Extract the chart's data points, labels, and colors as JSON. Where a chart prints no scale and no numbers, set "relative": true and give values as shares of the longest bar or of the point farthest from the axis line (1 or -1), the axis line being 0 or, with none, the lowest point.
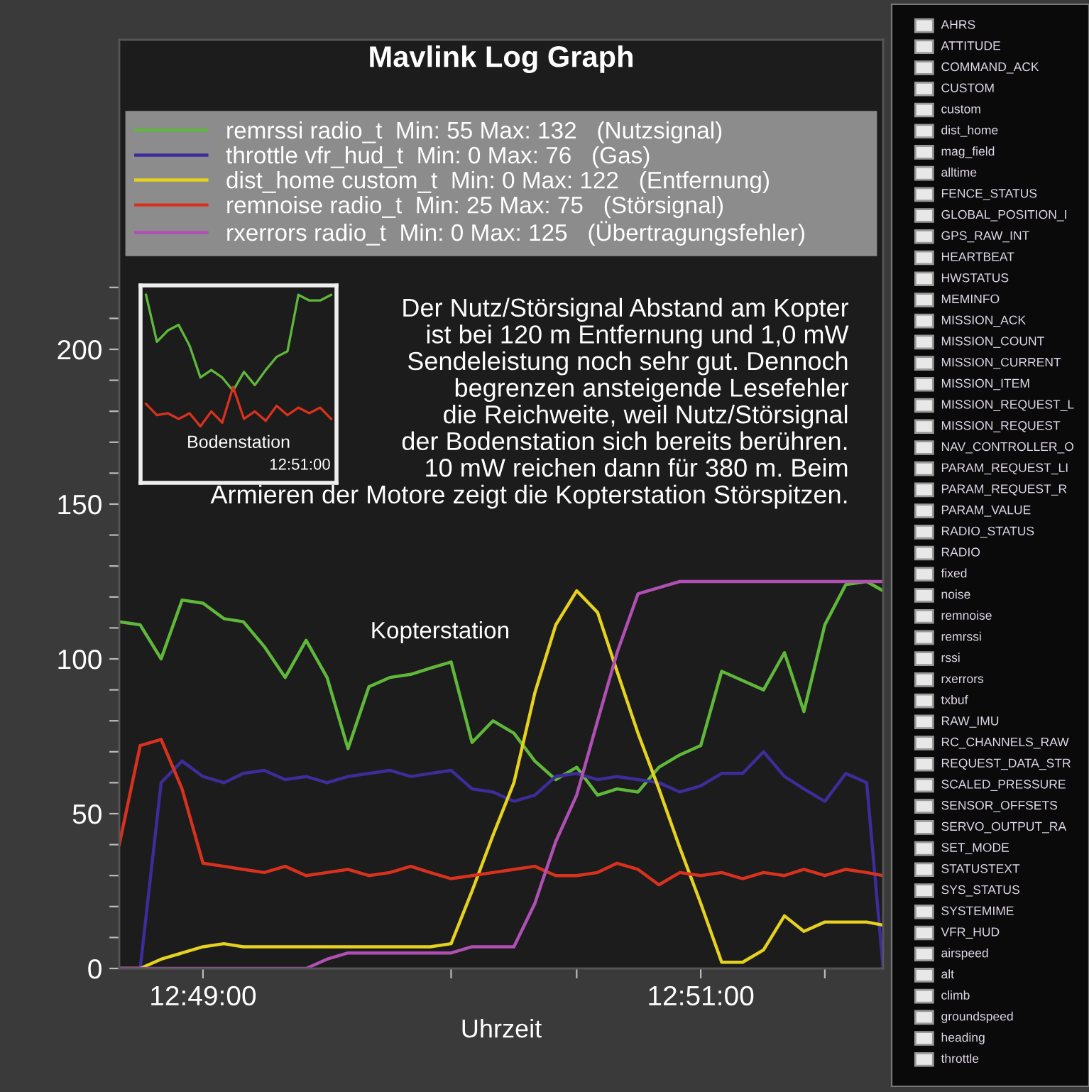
{
  "chart_data": [
    {
      "type": "line",
      "title": "Mavlink Log Graph",
      "xlabel": "Uhrzeit",
      "legend": "top",
      "line_style": "solid",
      "x": [
        12.8111,
        12.8125,
        12.8139,
        12.8153,
        12.8167,
        12.8181,
        12.8194,
        12.8208,
        12.8222,
        12.8236,
        12.825,
        12.8264,
        12.8278,
        12.8292,
        12.8306,
        12.8319,
        12.8333,
        12.8347,
        12.8361,
        12.8375,
        12.8389,
        12.8403,
        12.8417,
        12.8431,
        12.8444,
        12.8458,
        12.8472,
        12.8486,
        12.85,
        12.8514,
        12.8528,
        12.8542,
        12.8556,
        12.8569,
        12.8583,
        12.8597,
        12.8611,
        12.8622
      ],
      "xlim": [
        12.8111,
        12.8622
      ],
      "xticks": [
        {
          "value": 12.8167,
          "label": "12:49:00"
        },
        {
          "value": 12.8333,
          "label": null
        },
        {
          "value": 12.8417,
          "label": null
        },
        {
          "value": 12.85,
          "label": "12:51:00"
        },
        {
          "value": 12.8583,
          "label": null
        }
      ],
      "ylim": [
        0,
        300
      ],
      "yticks": [
        0,
        {
          "value": 10,
          "label": null
        },
        {
          "value": 20,
          "label": null
        },
        {
          "value": 30,
          "label": null
        },
        {
          "value": 40,
          "label": null
        },
        50,
        {
          "value": 60,
          "label": null
        },
        {
          "value": 70,
          "label": null
        },
        {
          "value": 80,
          "label": null
        },
        {
          "value": 90,
          "label": null
        },
        100,
        {
          "value": 110,
          "label": null
        },
        {
          "value": 120,
          "label": null
        },
        {
          "value": 130,
          "label": null
        },
        {
          "value": 140,
          "label": null
        },
        150,
        {
          "value": 160,
          "label": null
        },
        {
          "value": 170,
          "label": null
        },
        {
          "value": 180,
          "label": null
        },
        {
          "value": 190,
          "label": null
        },
        200,
        {
          "value": 210,
          "label": null
        },
        {
          "value": 220,
          "label": null
        }
      ],
      "series": [
        {
          "name": "remrssi radio_t  Min: 55 Max: 132   (Nutzsignal)",
          "color": "#5fb83a",
          "values": [
            112,
            111,
            100,
            119,
            118,
            113,
            112,
            104,
            94,
            106,
            94,
            71,
            91,
            94,
            95,
            97,
            99,
            73,
            80,
            76,
            67,
            61,
            65,
            56,
            58,
            57,
            65,
            69,
            72,
            96,
            93,
            90,
            102,
            83,
            111,
            124,
            125,
            122
          ]
        },
        {
          "name": "throttle vfr_hud_t  Min: 0 Max: 76   (Gas)",
          "color": "#3c2d9a",
          "values": [
            0,
            0,
            60,
            67,
            62,
            60,
            63,
            64,
            61,
            62,
            60,
            62,
            63,
            64,
            62,
            63,
            64,
            58,
            57,
            54,
            56,
            62,
            63,
            61,
            62,
            61,
            60,
            57,
            59,
            63,
            63,
            70,
            62,
            58,
            54,
            63,
            60,
            0
          ]
        },
        {
          "name": "dist_home custom_t  Min: 0 Max: 122   (Entfernung)",
          "color": "#e6d21e",
          "values": [
            0,
            0,
            3,
            5,
            7,
            8,
            7,
            7,
            7,
            7,
            7,
            7,
            7,
            7,
            7,
            7,
            8,
            25,
            43,
            60,
            89,
            111,
            122,
            115,
            96,
            76,
            58,
            39,
            21,
            2,
            2,
            6,
            17,
            12,
            15,
            15,
            15,
            14
          ]
        },
        {
          "name": "remnoise radio_t  Min: 25 Max: 75   (Störsignal)",
          "color": "#d8321e",
          "values": [
            40,
            72,
            74,
            58,
            34,
            33,
            32,
            31,
            33,
            30,
            31,
            32,
            30,
            31,
            33,
            31,
            29,
            30,
            31,
            32,
            33,
            30,
            30,
            31,
            34,
            32,
            27,
            31,
            30,
            31,
            29,
            31,
            30,
            32,
            30,
            32,
            31,
            30
          ]
        },
        {
          "name": "rxerrors radio_t  Min: 0 Max: 125   (Übertragungsfehler)",
          "color": "#b04fb4",
          "values": [
            0,
            0,
            0,
            0,
            0,
            0,
            0,
            0,
            0,
            0,
            3,
            5,
            5,
            5,
            5,
            5,
            5,
            7,
            7,
            7,
            21,
            41,
            56,
            80,
            102,
            121,
            123,
            125,
            125,
            125,
            125,
            125,
            125,
            125,
            125,
            125,
            125,
            125
          ]
        }
      ],
      "annotations": [
        "Der Nutz/Störsignal Abstand am Kopter\nist bei 120 m Entfernung und 1,0 mW\nSendeleistung noch sehr gut. Dennoch\nbegrenzen ansteigende Lesefehler\ndie Reichweite, weil Nutz/Störsignal\nder Bodenstation sich bereits berühren.\n10 mW reichen dann für 380 m. Beim\nArmieren der Motore zeigt die Kopterstation Störspitzen.",
        "Kopterstation"
      ]
    },
    {
      "type": "line",
      "relative": true,
      "categories": [
        null,
        null,
        null,
        null,
        null,
        null,
        null,
        null,
        null,
        null,
        null,
        null,
        null,
        null,
        null,
        null,
        null,
        null
      ],
      "series": [
        {
          "color": "#5fb83a",
          "values": [
            1.0,
            0.75,
            0.81,
            0.84,
            0.73,
            0.56,
            0.6,
            0.56,
            0.49,
            0.59,
            0.52,
            0.6,
            0.67,
            0.7,
            1.0,
            0.97,
            0.97,
            1.0
          ]
        },
        {
          "color": "#d8321e",
          "values": [
            0.42,
            0.36,
            0.37,
            0.34,
            0.37,
            0.3,
            0.38,
            0.32,
            0.51,
            0.34,
            0.38,
            0.33,
            0.41,
            0.36,
            0.4,
            0.37,
            0.4,
            0.34
          ]
        }
      ],
      "annotations": [
        "Bodenstation",
        "12:51:00"
      ]
    },
    {
      "type": "other",
      "annotations": [
        "AHRS",
        "ATTITUDE",
        "COMMAND_ACK",
        "CUSTOM",
        "custom",
        "dist_home",
        "mag_field",
        "alltime",
        "FENCE_STATUS",
        "GLOBAL_POSITION_I",
        "GPS_RAW_INT",
        "HEARTBEAT",
        "HWSTATUS",
        "MEMINFO",
        "MISSION_ACK",
        "MISSION_COUNT",
        "MISSION_CURRENT",
        "MISSION_ITEM",
        "MISSION_REQUEST_L",
        "MISSION_REQUEST",
        "NAV_CONTROLLER_O",
        "PARAM_REQUEST_LI",
        "PARAM_REQUEST_R",
        "PARAM_VALUE",
        "RADIO_STATUS",
        "RADIO",
        "fixed",
        "noise",
        "remnoise",
        "remrssi",
        "rssi",
        "rxerrors",
        "txbuf",
        "RAW_IMU",
        "RC_CHANNELS_RAW",
        "REQUEST_DATA_STR",
        "SCALED_PRESSURE",
        "SENSOR_OFFSETS",
        "SERVO_OUTPUT_RA",
        "SET_MODE",
        "STATUSTEXT",
        "SYS_STATUS",
        "SYSTEMIME",
        "VFR_HUD",
        "airspeed",
        "alt",
        "climb",
        "groundspeed",
        "heading",
        "throttle"
      ]
    }
  ]
}
